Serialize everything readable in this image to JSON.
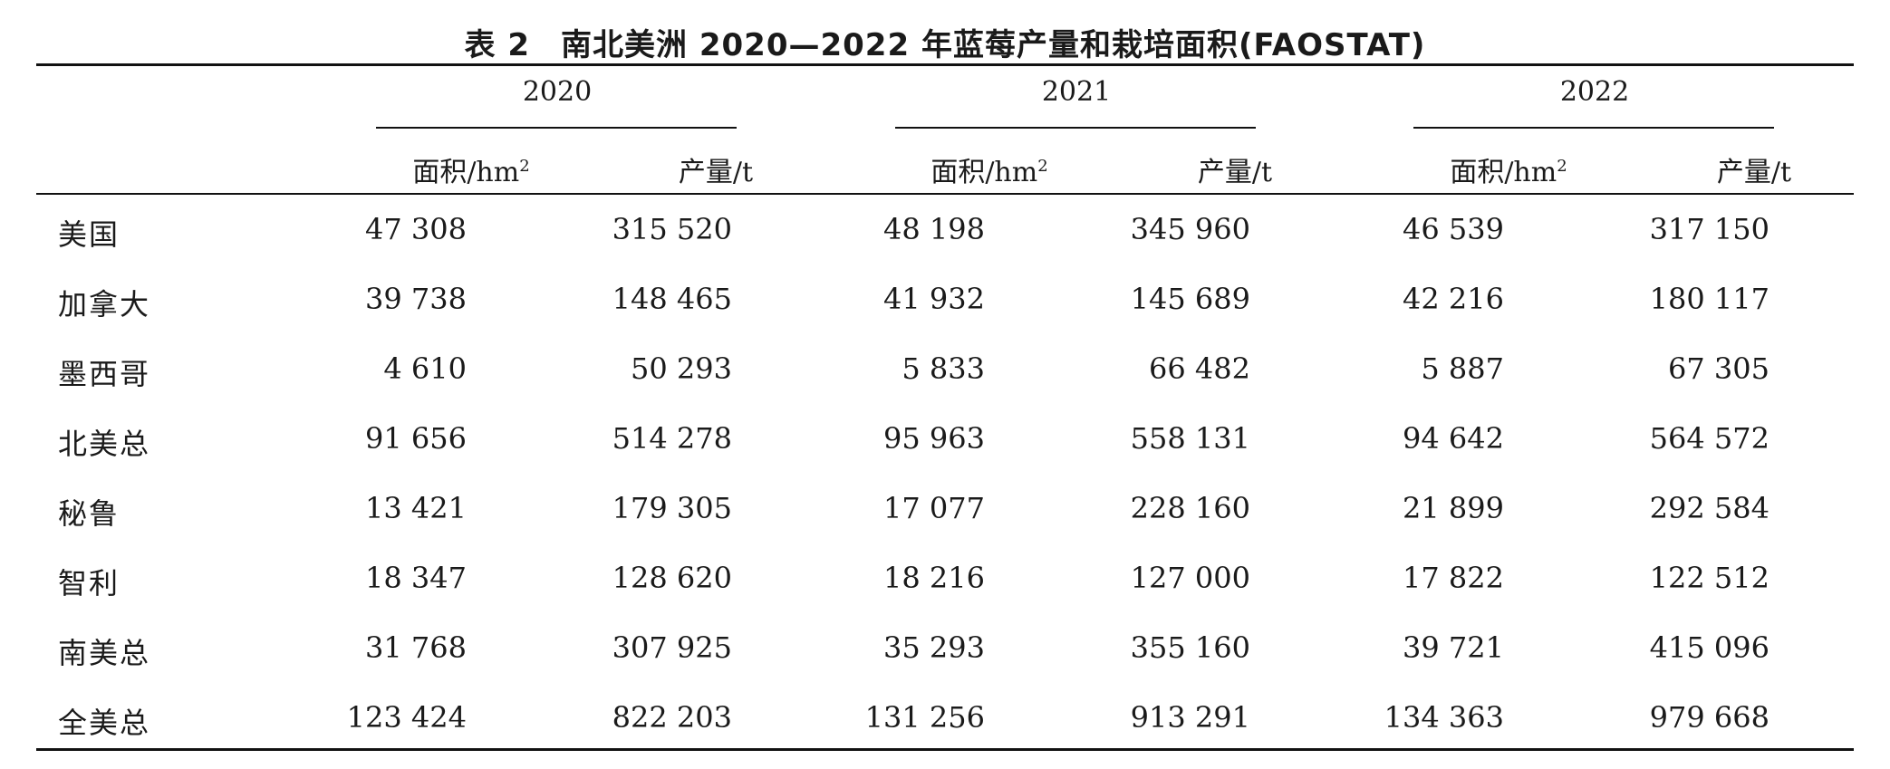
{
  "caption": {
    "number": "表 2",
    "title": "南北美洲 2020—2022 年蓝莓产量和栽培面积(FAOSTAT)"
  },
  "headers": {
    "years": [
      "2020",
      "2021",
      "2022"
    ],
    "area_label": "面积/hm",
    "area_sup": "2",
    "production_label": "产量/t"
  },
  "rows": [
    {
      "name": "美国",
      "values": [
        "47 308",
        "315 520",
        "48 198",
        "345 960",
        "46 539",
        "317 150"
      ]
    },
    {
      "name": "加拿大",
      "values": [
        "39 738",
        "148 465",
        "41 932",
        "145 689",
        "42 216",
        "180 117"
      ]
    },
    {
      "name": "墨西哥",
      "values": [
        "4 610",
        "50 293",
        "5 833",
        "66 482",
        "5 887",
        "67 305"
      ]
    },
    {
      "name": "北美总",
      "values": [
        "91 656",
        "514 278",
        "95 963",
        "558 131",
        "94 642",
        "564 572"
      ]
    },
    {
      "name": "秘鲁",
      "values": [
        "13 421",
        "179 305",
        "17 077",
        "228 160",
        "21 899",
        "292 584"
      ]
    },
    {
      "name": "智利",
      "values": [
        "18 347",
        "128 620",
        "18 216",
        "127 000",
        "17 822",
        "122 512"
      ]
    },
    {
      "name": "南美总",
      "values": [
        "31 768",
        "307 925",
        "35 293",
        "355 160",
        "39 721",
        "415 096"
      ]
    },
    {
      "name": "全美总",
      "values": [
        "123 424",
        "822 203",
        "131 256",
        "913 291",
        "134 363",
        "979 668"
      ]
    }
  ]
}
